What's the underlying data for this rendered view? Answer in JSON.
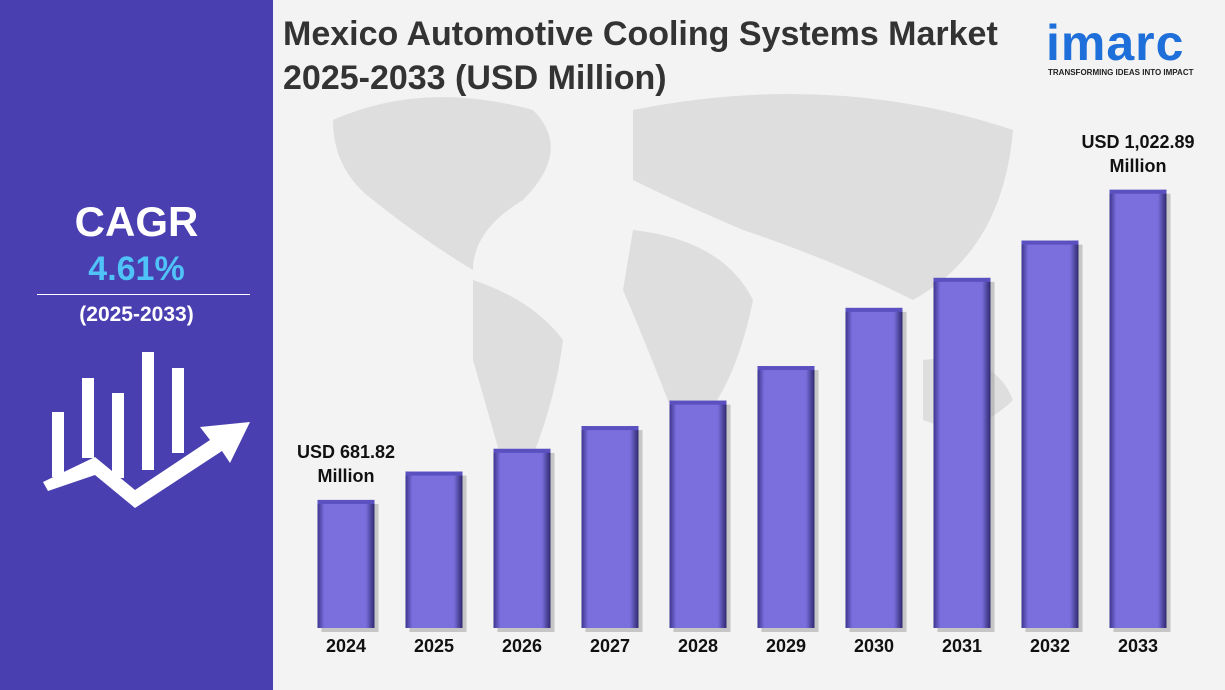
{
  "chart_data": {
    "type": "bar",
    "title": "Mexico Automotive Cooling Systems Market 2025-2033 (USD Million)",
    "categories": [
      "2024",
      "2025",
      "2026",
      "2027",
      "2028",
      "2029",
      "2030",
      "2031",
      "2032",
      "2033"
    ],
    "values": [
      681.82,
      713,
      738,
      763,
      791,
      829,
      893,
      926,
      967,
      1022.89
    ],
    "value_labels": [
      "USD 681.82 Million",
      null,
      null,
      null,
      null,
      null,
      null,
      null,
      null,
      "USD 1,022.89 Million"
    ],
    "color": "#7a6fdc",
    "ylim": [
      541,
      1060
    ]
  },
  "sidebar": {
    "label": "CAGR",
    "value": "4.61%",
    "period": "(2025-2033)"
  },
  "logo": {
    "name": "imarc",
    "tagline": "TRANSFORMING IDEAS INTO IMPACT"
  }
}
